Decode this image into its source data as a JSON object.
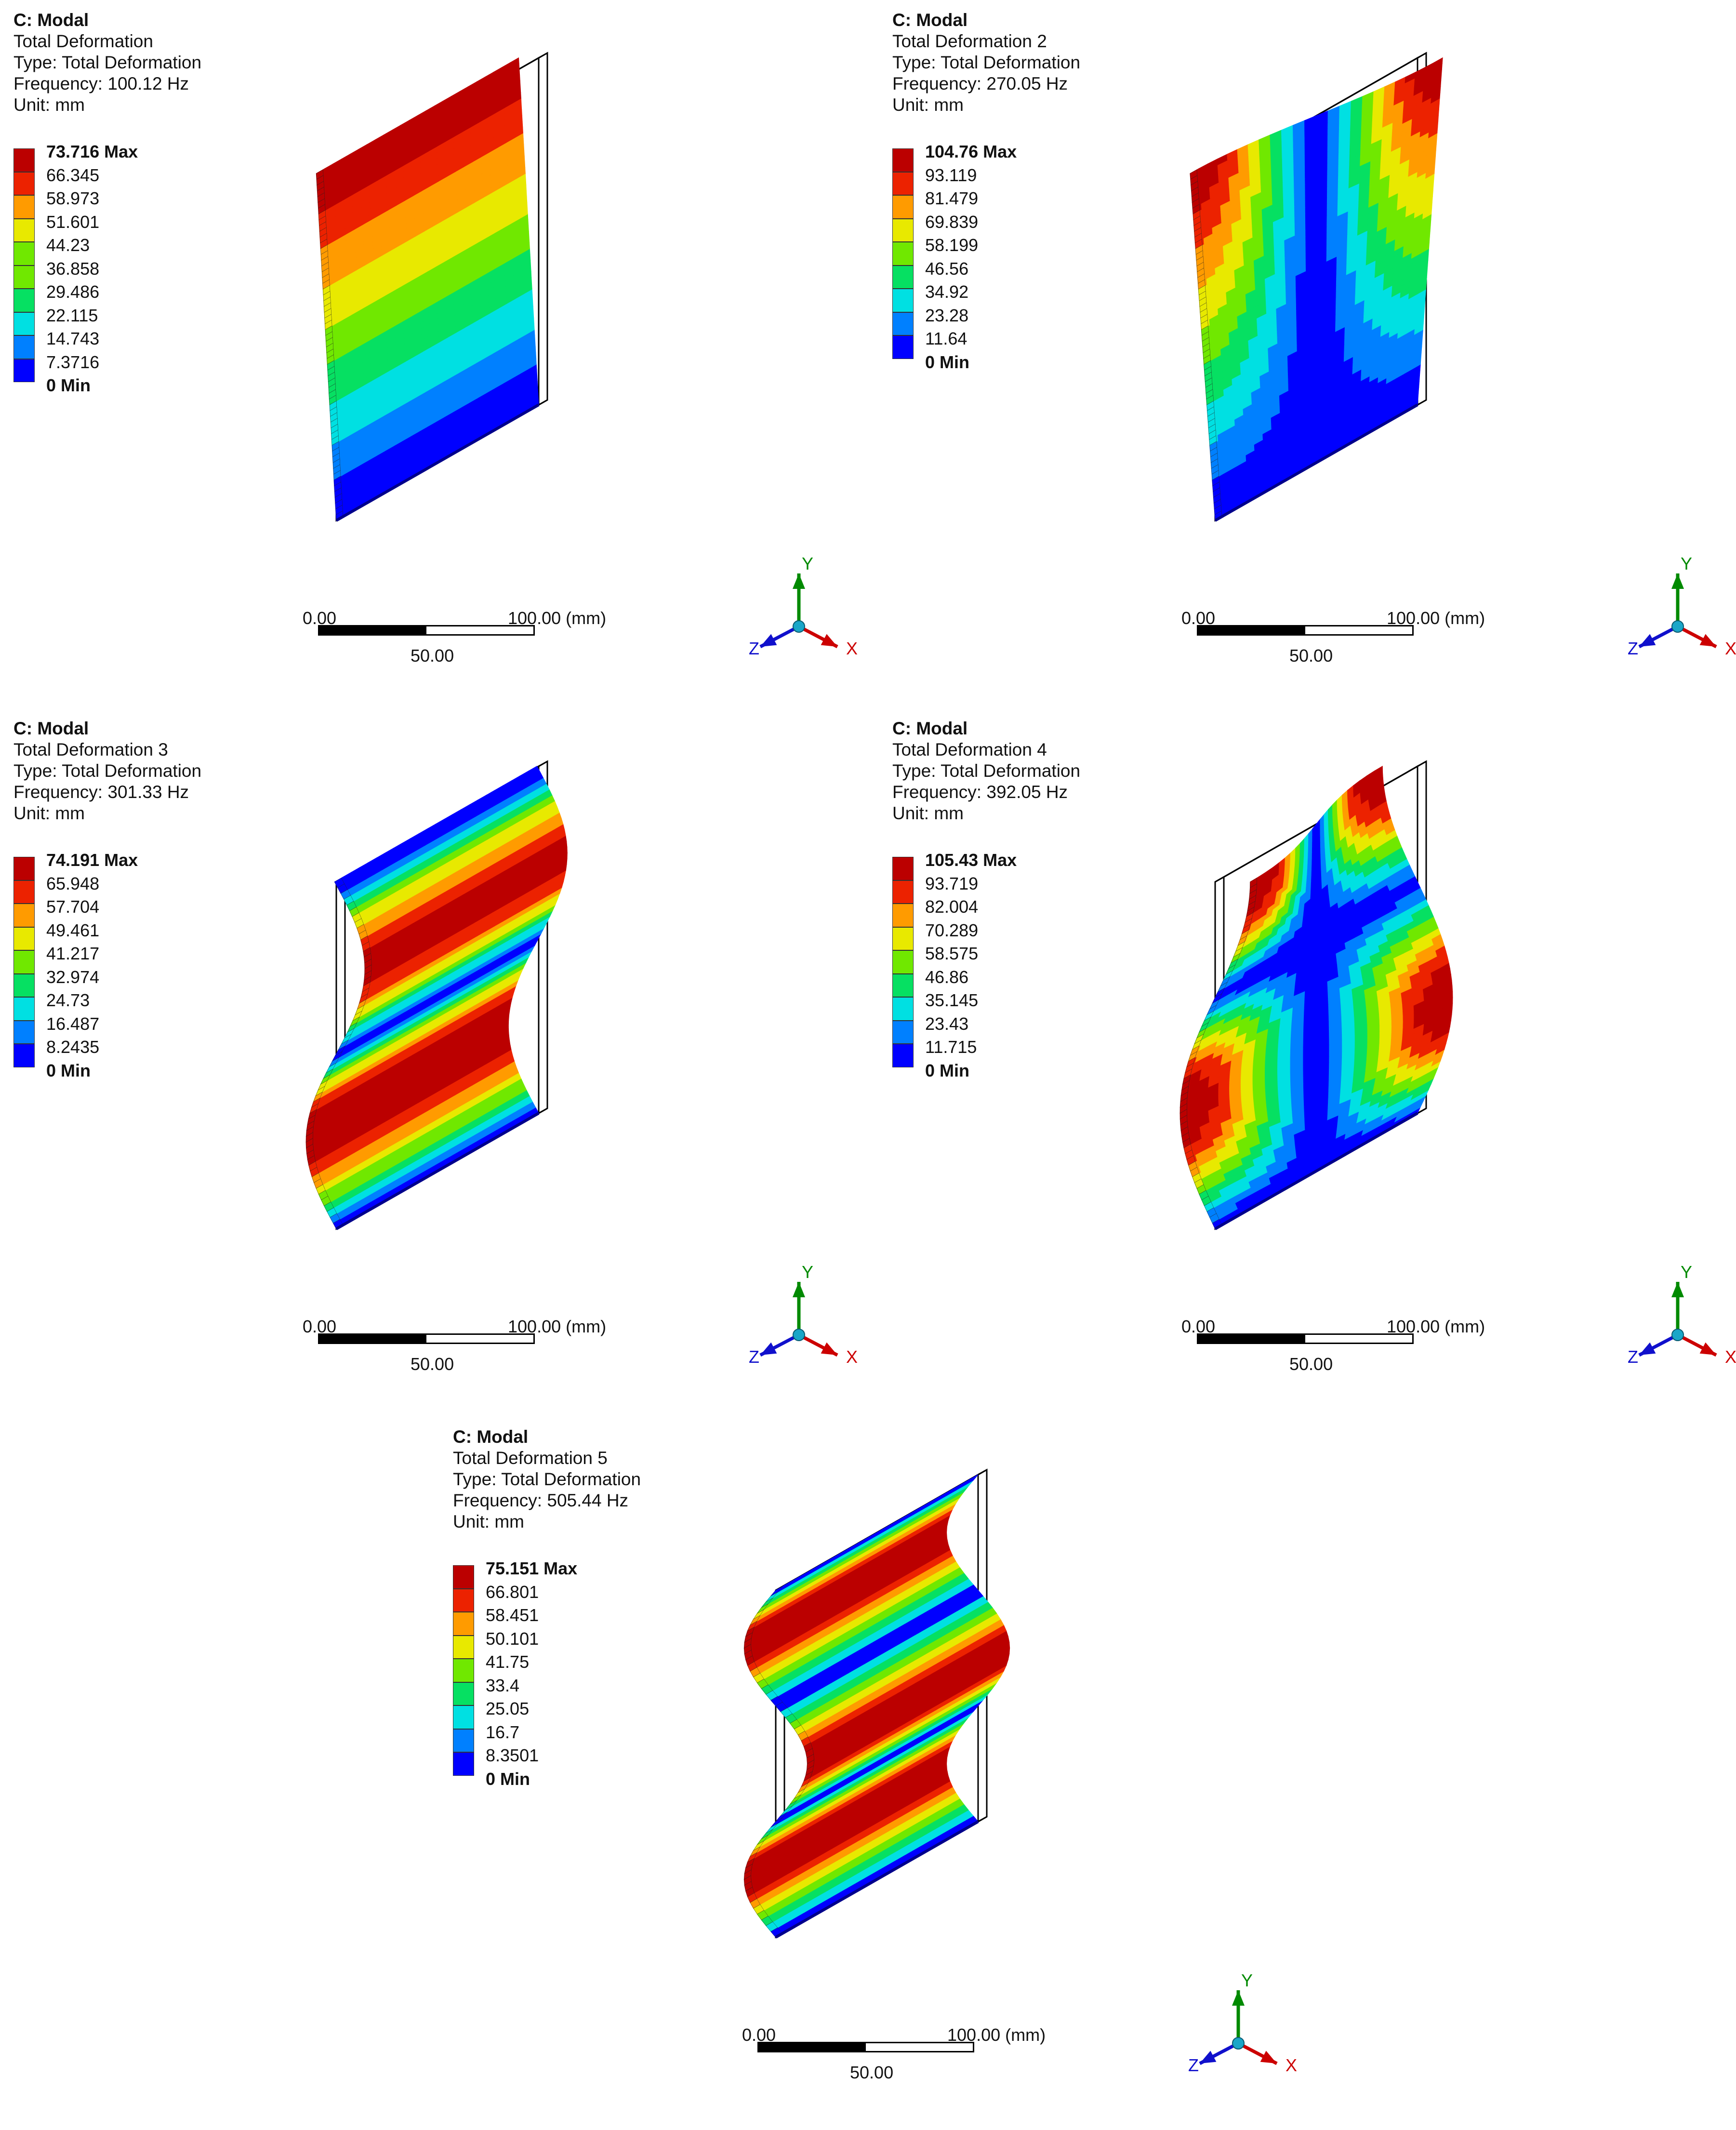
{
  "panels": [
    {
      "system": "C: Modal",
      "name": "Total Deformation",
      "type": "Type: Total Deformation",
      "frequency": "Frequency: 100.12 Hz",
      "unit": "Unit: mm",
      "legend": [
        "73.716 Max",
        "66.345",
        "58.973",
        "51.601",
        "44.23",
        "36.858",
        "29.486",
        "22.115",
        "14.743",
        "7.3716",
        "0 Min"
      ],
      "mode": 1
    },
    {
      "system": "C: Modal",
      "name": "Total Deformation 2",
      "type": "Type: Total Deformation",
      "frequency": "Frequency: 270.05 Hz",
      "unit": "Unit: mm",
      "legend": [
        "104.76 Max",
        "93.119",
        "81.479",
        "69.839",
        "58.199",
        "46.56",
        "34.92",
        "23.28",
        "11.64",
        "0 Min"
      ],
      "mode": 2
    },
    {
      "system": "C: Modal",
      "name": "Total Deformation 3",
      "type": "Type: Total Deformation",
      "frequency": "Frequency: 301.33 Hz",
      "unit": "Unit: mm",
      "legend": [
        "74.191 Max",
        "65.948",
        "57.704",
        "49.461",
        "41.217",
        "32.974",
        "24.73",
        "16.487",
        "8.2435",
        "0 Min"
      ],
      "mode": 3
    },
    {
      "system": "C: Modal",
      "name": "Total Deformation 4",
      "type": "Type: Total Deformation",
      "frequency": "Frequency: 392.05 Hz",
      "unit": "Unit: mm",
      "legend": [
        "105.43 Max",
        "93.719",
        "82.004",
        "70.289",
        "58.575",
        "46.86",
        "35.145",
        "23.43",
        "11.715",
        "0 Min"
      ],
      "mode": 4
    },
    {
      "system": "C: Modal",
      "name": "Total Deformation 5",
      "type": "Type: Total Deformation",
      "frequency": "Frequency: 505.44 Hz",
      "unit": "Unit: mm",
      "legend": [
        "75.151 Max",
        "66.801",
        "58.451",
        "50.101",
        "41.75",
        "33.4",
        "25.05",
        "16.7",
        "8.3501",
        "0 Min"
      ],
      "mode": 5
    }
  ],
  "scale_bar": {
    "start": "0.00",
    "end": "100.00 (mm)",
    "mid": "50.00"
  },
  "triad": {
    "x": "X",
    "y": "Y",
    "z": "Z"
  },
  "colors": {
    "map": [
      "#0000ff",
      "#0060ff",
      "#00b5ff",
      "#00eed8",
      "#00e070",
      "#30e000",
      "#b0f000",
      "#f0e800",
      "#ffb000",
      "#ff5a00",
      "#e00000",
      "#bb0000"
    ],
    "axis_x": "#cc0000",
    "axis_y": "#008a00",
    "axis_z": "#1010cc"
  }
}
